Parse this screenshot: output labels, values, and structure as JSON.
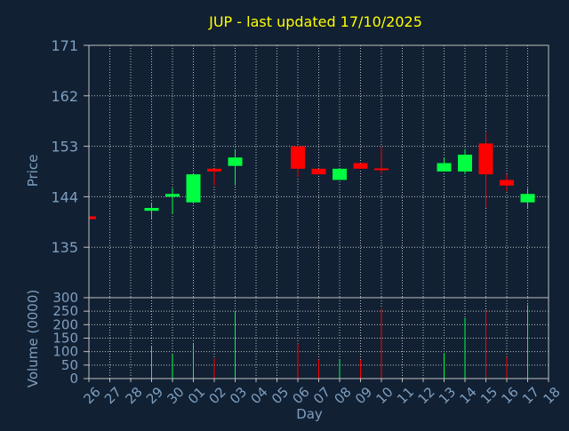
{
  "chart_data": {
    "type": "candlestick",
    "title": "JUP - last updated 17/10/2025",
    "xlabel": "Day",
    "grid": true,
    "colors": {
      "background": "#112033",
      "title": "#ffff00",
      "axis_text": "#7f9fbf",
      "tick_text": "#7f9fbf",
      "frame": "#bfbfbf",
      "grid": "#bfbfbf",
      "up": "#00ff40",
      "down": "#ff0000"
    },
    "x_ticks": [
      "26",
      "27",
      "28",
      "29",
      "30",
      "01",
      "02",
      "03",
      "04",
      "05",
      "06",
      "07",
      "08",
      "09",
      "10",
      "11",
      "12",
      "13",
      "14",
      "15",
      "16",
      "17",
      "18"
    ],
    "price_panel": {
      "ylabel": "Price",
      "ylim": [
        126,
        171
      ],
      "yticks": [
        135,
        144,
        153,
        162,
        171
      ],
      "candles": [
        {
          "day": "26",
          "open": 140.5,
          "close": 140.0,
          "high": 140.5,
          "low": 140.0
        },
        {
          "day": "29",
          "open": 141.5,
          "close": 142.0,
          "high": 143.0,
          "low": 140.0
        },
        {
          "day": "30",
          "open": 144.0,
          "close": 144.5,
          "high": 145.5,
          "low": 141.0
        },
        {
          "day": "01",
          "open": 143.0,
          "close": 148.0,
          "high": 148.0,
          "low": 143.0
        },
        {
          "day": "02",
          "open": 149.0,
          "close": 148.5,
          "high": 149.0,
          "low": 146.0
        },
        {
          "day": "03",
          "open": 149.5,
          "close": 151.0,
          "high": 152.5,
          "low": 146.0
        },
        {
          "day": "06",
          "open": 153.0,
          "close": 149.0,
          "high": 153.0,
          "low": 147.5
        },
        {
          "day": "07",
          "open": 149.0,
          "close": 148.0,
          "high": 149.0,
          "low": 148.0
        },
        {
          "day": "08",
          "open": 147.0,
          "close": 149.0,
          "high": 149.0,
          "low": 147.0
        },
        {
          "day": "09",
          "open": 150.0,
          "close": 149.0,
          "high": 150.0,
          "low": 149.0
        },
        {
          "day": "10",
          "open": 149.0,
          "close": 148.8,
          "high": 153.0,
          "low": 148.0
        },
        {
          "day": "13",
          "open": 148.5,
          "close": 150.0,
          "high": 151.0,
          "low": 148.5
        },
        {
          "day": "14",
          "open": 148.5,
          "close": 151.5,
          "high": 152.5,
          "low": 148.0
        },
        {
          "day": "15",
          "open": 153.5,
          "close": 148.0,
          "high": 155.5,
          "low": 142.0
        },
        {
          "day": "16",
          "open": 147.0,
          "close": 146.0,
          "high": 148.0,
          "low": 145.0
        },
        {
          "day": "17",
          "open": 143.0,
          "close": 144.5,
          "high": 145.5,
          "low": 142.0
        }
      ]
    },
    "volume_panel": {
      "ylabel": "Volume (0000)",
      "ylim": [
        0,
        300
      ],
      "yticks": [
        0,
        50,
        100,
        150,
        200,
        250,
        300
      ],
      "bars": [
        {
          "day": "29",
          "value": 120,
          "direction": "up"
        },
        {
          "day": "30",
          "value": 90,
          "direction": "up"
        },
        {
          "day": "01",
          "value": 130,
          "direction": "up"
        },
        {
          "day": "02",
          "value": 75,
          "direction": "down"
        },
        {
          "day": "03",
          "value": 250,
          "direction": "up"
        },
        {
          "day": "06",
          "value": 130,
          "direction": "down"
        },
        {
          "day": "07",
          "value": 70,
          "direction": "down"
        },
        {
          "day": "08",
          "value": 70,
          "direction": "up"
        },
        {
          "day": "09",
          "value": 70,
          "direction": "down"
        },
        {
          "day": "10",
          "value": 260,
          "direction": "down"
        },
        {
          "day": "13",
          "value": 95,
          "direction": "up"
        },
        {
          "day": "14",
          "value": 225,
          "direction": "up"
        },
        {
          "day": "15",
          "value": 255,
          "direction": "down"
        },
        {
          "day": "16",
          "value": 80,
          "direction": "down"
        },
        {
          "day": "17",
          "value": 275,
          "direction": "up"
        }
      ]
    }
  }
}
